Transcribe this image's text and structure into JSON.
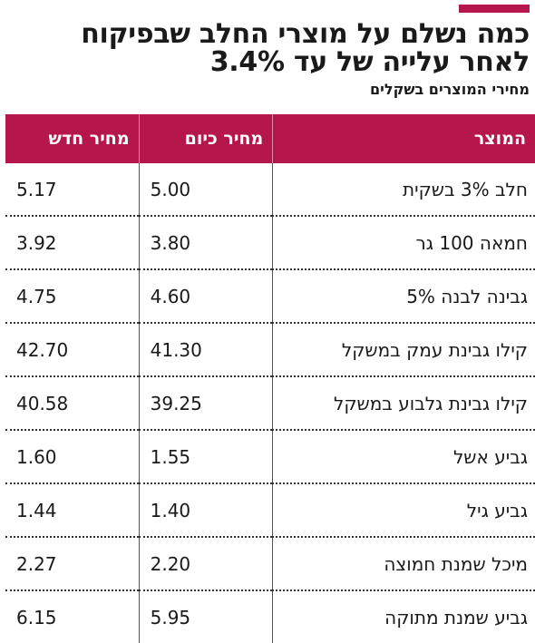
{
  "colors": {
    "accent": "#b5164b",
    "header_text": "#ffffff"
  },
  "header": {
    "title": "כמה נשלם על מוצרי החלב שבפיקוח לאחר עלייה של עד 3.4%",
    "subtitle": "מחירי המוצרים בשקלים"
  },
  "chart_data": {
    "type": "table",
    "title": "כמה נשלם על מוצרי החלב שבפיקוח לאחר עלייה של עד 3.4%",
    "subtitle": "מחירי המוצרים בשקלים",
    "columns": [
      "המוצר",
      "מחיר כיום",
      "מחיר חדש"
    ],
    "rows": [
      {
        "product": "חלב 3% בשקית",
        "current": "5.00",
        "new": "5.17"
      },
      {
        "product": "חמאה 100 גר",
        "current": "3.80",
        "new": "3.92"
      },
      {
        "product": "גבינה לבנה 5%",
        "current": "4.60",
        "new": "4.75"
      },
      {
        "product": "קילו גבינת עמק במשקל",
        "current": "41.30",
        "new": "42.70"
      },
      {
        "product": "קילו גבינת גלבוע במשקל",
        "current": "39.25",
        "new": "40.58"
      },
      {
        "product": "גביע אשל",
        "current": "1.55",
        "new": "1.60"
      },
      {
        "product": "גביע גיל",
        "current": "1.40",
        "new": "1.44"
      },
      {
        "product": "מיכל שמנת חמוצה",
        "current": "2.20",
        "new": "2.27"
      },
      {
        "product": "גביע שמנת מתוקה",
        "current": "5.95",
        "new": "6.15"
      }
    ]
  }
}
